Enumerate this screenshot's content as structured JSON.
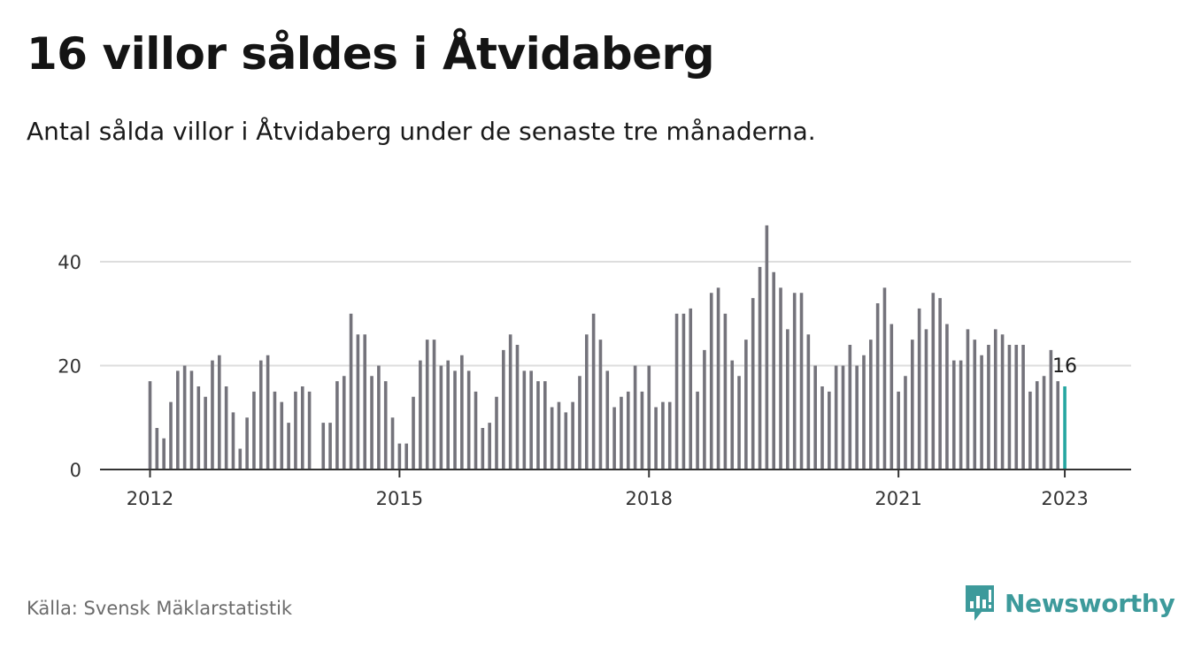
{
  "title": "16 villor såldes i Åtvidaberg",
  "subtitle": "Antal sålda villor i Åtvidaberg under de senaste tre månaderna.",
  "source": "Källa: Svensk Mäklarstatistik",
  "logo_text": "Newsworthy",
  "colors": {
    "bar": "#74737b",
    "highlight": "#25a6a1",
    "brand": "#3d9a9b",
    "grid": "#dddddd",
    "axis": "#333333"
  },
  "chart_data": {
    "type": "bar",
    "title": "16 villor såldes i Åtvidaberg",
    "xlabel": "",
    "ylabel": "",
    "ylim": [
      0,
      50
    ],
    "yticks": [
      0,
      20,
      40
    ],
    "grid": true,
    "x_ticks": [
      "2012",
      "2015",
      "2018",
      "2021",
      "2023"
    ],
    "start": "2012-01",
    "highlight_label": "16",
    "values": [
      17,
      8,
      6,
      13,
      19,
      20,
      19,
      16,
      14,
      21,
      22,
      16,
      11,
      4,
      10,
      15,
      21,
      22,
      15,
      13,
      9,
      15,
      16,
      15,
      null,
      9,
      9,
      17,
      18,
      30,
      26,
      26,
      18,
      20,
      17,
      10,
      5,
      5,
      14,
      21,
      25,
      25,
      20,
      21,
      19,
      22,
      19,
      15,
      8,
      9,
      14,
      23,
      26,
      24,
      19,
      19,
      17,
      17,
      12,
      13,
      11,
      13,
      18,
      26,
      30,
      25,
      19,
      12,
      14,
      15,
      20,
      15,
      20,
      12,
      13,
      13,
      30,
      30,
      31,
      15,
      23,
      34,
      35,
      30,
      21,
      18,
      25,
      33,
      39,
      47,
      38,
      35,
      27,
      34,
      34,
      26,
      20,
      16,
      15,
      20,
      20,
      24,
      20,
      22,
      25,
      32,
      35,
      28,
      15,
      18,
      25,
      31,
      27,
      34,
      33,
      28,
      21,
      21,
      27,
      25,
      22,
      24,
      27,
      26,
      24,
      24,
      24,
      15,
      17,
      18,
      23,
      17,
      16
    ]
  }
}
